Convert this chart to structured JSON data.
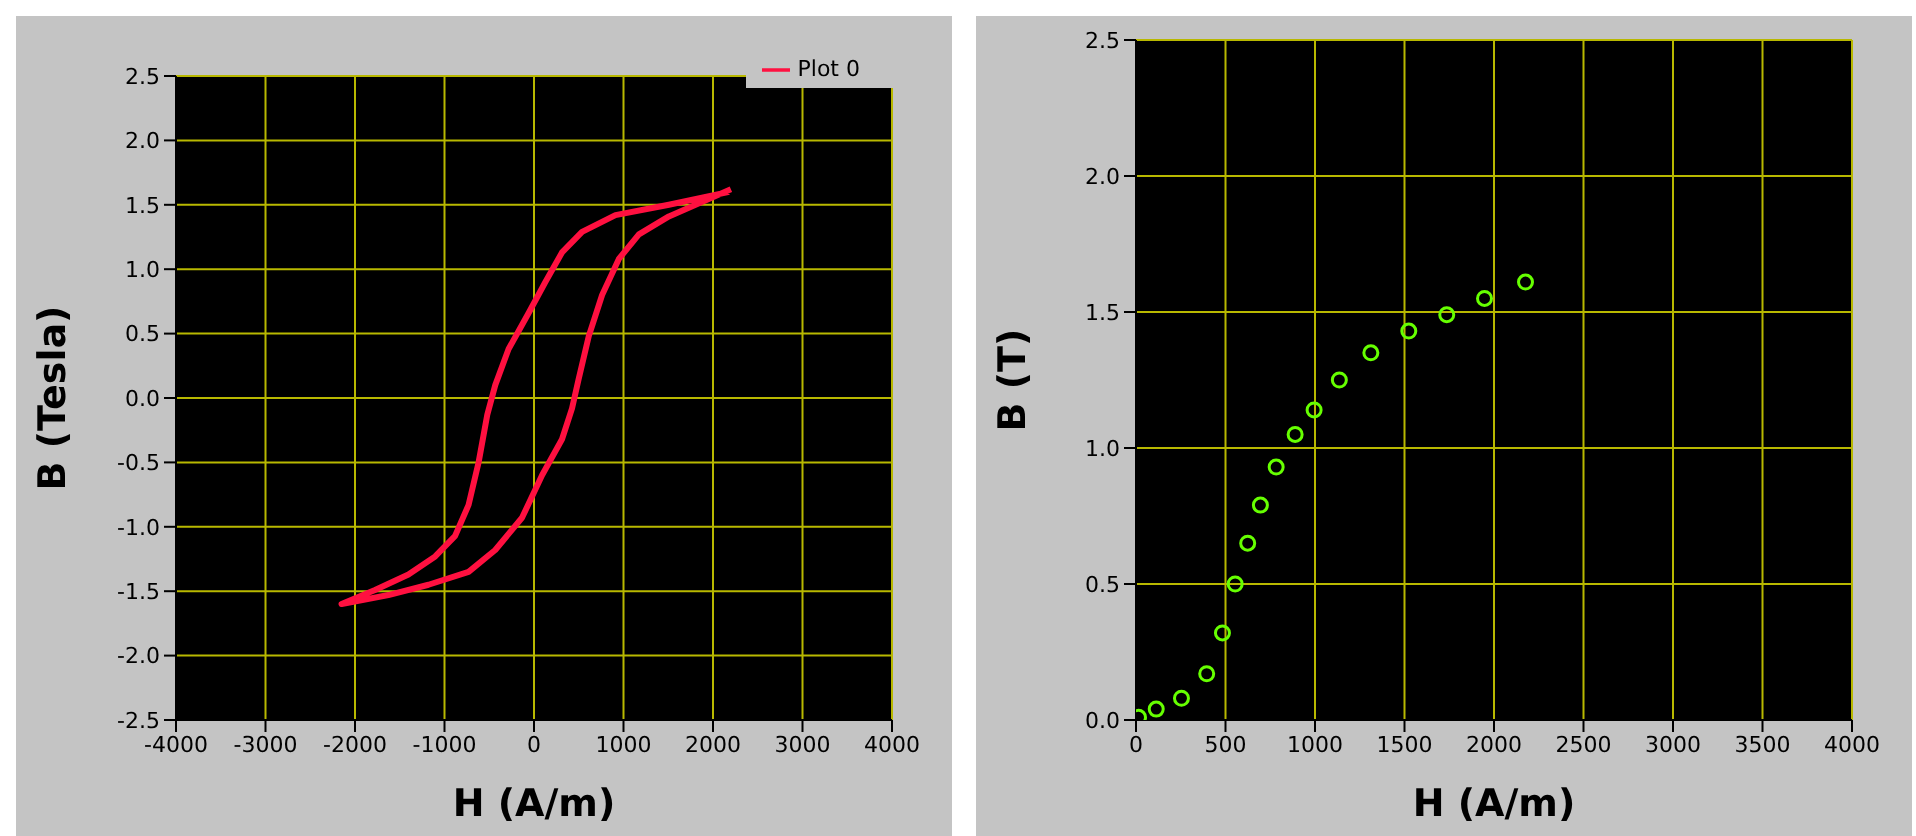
{
  "chart_data": [
    {
      "type": "line",
      "xlabel": "H (A/m)",
      "ylabel": "B (Tesla)",
      "xlim": [
        -4000,
        4000
      ],
      "xticks": [
        -4000,
        -3000,
        -2000,
        -1000,
        0,
        1000,
        2000,
        3000,
        4000
      ],
      "ylim": [
        -2.5,
        2.5
      ],
      "yticks": [
        -2.5,
        {
          "value": -2,
          "label": "-2.0"
        },
        -1.5,
        {
          "value": -1,
          "label": "-1.0"
        },
        -0.5,
        {
          "value": 0,
          "label": "0.0"
        },
        0.5,
        {
          "value": 1,
          "label": "1.0"
        },
        1.5,
        {
          "value": 2,
          "label": "2.0"
        },
        2.5
      ],
      "grid": true,
      "legend": "top right",
      "marker": "none",
      "line_style": "solid",
      "series": [
        {
          "name": "Plot 0",
          "color": "#ff1040",
          "x": [
            2180,
            1507,
            910,
            537,
            313,
            127,
            -60,
            -284,
            -433,
            -522,
            -619,
            -731,
            -881,
            -1104,
            -1403,
            -1776,
            -2150,
            -1627,
            -1179,
            -731,
            -433,
            -134,
            90,
            313,
            425,
            500,
            612,
            761,
            948,
            1172,
            1507,
            1806,
            2200
          ],
          "values": [
            1.6,
            1.5,
            1.42,
            1.29,
            1.13,
            0.9,
            0.66,
            0.38,
            0.1,
            -0.13,
            -0.5,
            -0.83,
            -1.07,
            -1.23,
            -1.37,
            -1.49,
            -1.6,
            -1.53,
            -1.45,
            -1.35,
            -1.18,
            -0.93,
            -0.6,
            -0.32,
            -0.08,
            0.15,
            0.48,
            0.8,
            1.08,
            1.27,
            1.41,
            1.5,
            1.62
          ]
        }
      ]
    },
    {
      "type": "scatter",
      "xlabel": "H (A/m)",
      "ylabel": "B (T)",
      "xlim": [
        0,
        4000
      ],
      "xticks": [
        0,
        500,
        1000,
        1500,
        2000,
        2500,
        3000,
        3500,
        4000
      ],
      "ylim": [
        0,
        2.5
      ],
      "yticks": [
        {
          "value": 0,
          "label": "0.0"
        },
        0.5,
        {
          "value": 1,
          "label": "1.0"
        },
        1.5,
        {
          "value": 2,
          "label": "2.0"
        },
        2.5
      ],
      "grid": true,
      "marker": "circle",
      "series": [
        {
          "color": "#66ff00",
          "x": [
            14,
            113,
            254,
            395,
            483,
            554,
            624,
            695,
            783,
            889,
            995,
            1136,
            1312,
            1524,
            1736,
            1947,
            2176
          ],
          "values": [
            0.01,
            0.04,
            0.08,
            0.17,
            0.32,
            0.5,
            0.65,
            0.79,
            0.93,
            1.05,
            1.14,
            1.25,
            1.35,
            1.43,
            1.49,
            1.55,
            1.61
          ]
        }
      ]
    }
  ]
}
